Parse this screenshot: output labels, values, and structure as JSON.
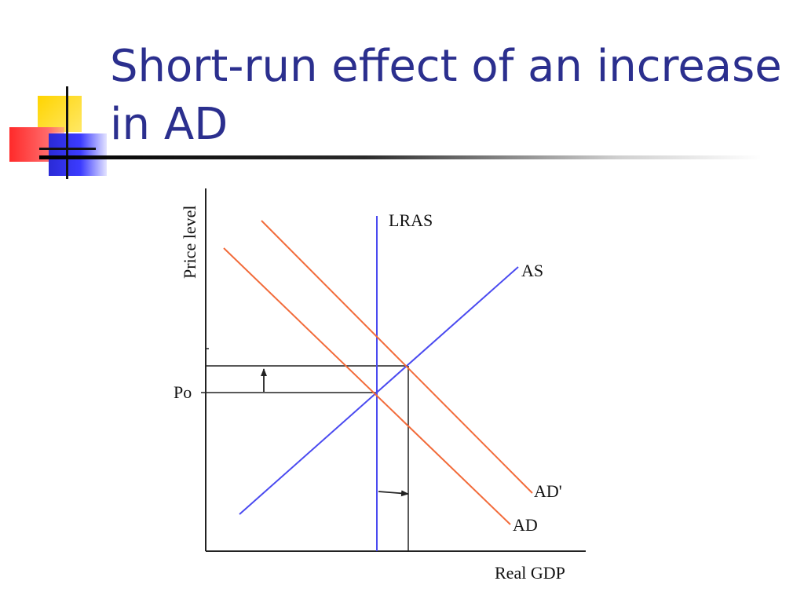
{
  "slide": {
    "title_lines": [
      "Short-run effect of an increase",
      "in AD"
    ],
    "colors": {
      "title": "#2B2F8E",
      "ad_curves": "#F26B3A",
      "supply_curves": "#4A4AF0",
      "axes": "#222222"
    }
  },
  "diagram": {
    "y_axis_label": "Price level",
    "x_axis_label": "Real GDP",
    "p0_label": "Po",
    "curves": {
      "lras": "LRAS",
      "as": "AS",
      "ad": "AD",
      "ad_prime": "AD'"
    }
  }
}
